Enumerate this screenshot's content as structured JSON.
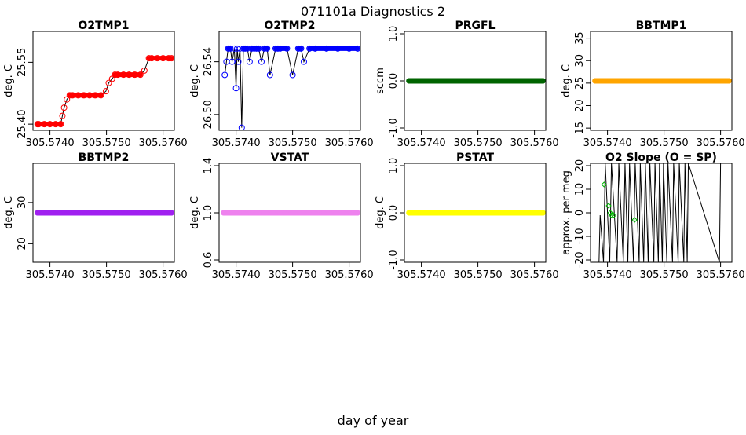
{
  "page": {
    "title": "071101a   Diagnostics 2",
    "xlabel": "day of year"
  },
  "chart_data": [
    {
      "type": "line",
      "title": "O2TMP1",
      "ylabel": "deg. C",
      "xlim": [
        305.5737,
        305.5762
      ],
      "ylim": [
        25.385,
        25.625
      ],
      "xticks": [
        305.574,
        305.575,
        305.576
      ],
      "xtick_labels": [
        "305.5740",
        "305.5750",
        "305.5760"
      ],
      "yticks": [
        25.4,
        25.55
      ],
      "ytick_labels": [
        "25.40",
        "25.55"
      ],
      "series": [
        {
          "color": "#ff0000",
          "marker": "circle",
          "line": true,
          "x": [
            305.57378,
            305.5738,
            305.5739,
            305.574,
            305.5741,
            305.57419,
            305.57422,
            305.57425,
            305.5743,
            305.57435,
            305.5744,
            305.5745,
            305.5746,
            305.5747,
            305.5748,
            305.5749,
            305.57499,
            305.57504,
            305.5751,
            305.57515,
            305.5752,
            305.5753,
            305.5754,
            305.5755,
            305.5756,
            305.57567,
            305.57575,
            305.5758,
            305.5759,
            305.576,
            305.5761,
            305.57615
          ],
          "y": [
            25.4,
            25.4,
            25.4,
            25.4,
            25.4,
            25.4,
            25.42,
            25.44,
            25.46,
            25.47,
            25.47,
            25.47,
            25.47,
            25.47,
            25.47,
            25.47,
            25.48,
            25.5,
            25.51,
            25.52,
            25.52,
            25.52,
            25.52,
            25.52,
            25.52,
            25.53,
            25.56,
            25.56,
            25.56,
            25.56,
            25.56,
            25.56
          ]
        }
      ]
    },
    {
      "type": "line",
      "title": "O2TMP2",
      "ylabel": "deg. C",
      "xlim": [
        305.5737,
        305.5762
      ],
      "ylim": [
        26.488,
        26.563
      ],
      "xticks": [
        305.574,
        305.575,
        305.576
      ],
      "xtick_labels": [
        "305.5740",
        "305.5750",
        "305.5760"
      ],
      "yticks": [
        26.5,
        26.54
      ],
      "ytick_labels": [
        "26.50",
        "26.54"
      ],
      "series": [
        {
          "color": "#0000ff",
          "marker": "circle",
          "line": true,
          "x": [
            305.5738,
            305.57383,
            305.57386,
            305.5739,
            305.57393,
            305.57397,
            305.574,
            305.57402,
            305.57404,
            305.57407,
            305.5741,
            305.57413,
            305.57416,
            305.5742,
            305.57424,
            305.57428,
            305.57432,
            305.57436,
            305.5744,
            305.57445,
            305.5745,
            305.57455,
            305.5746,
            305.5747,
            305.57474,
            305.57478,
            305.5749,
            305.575,
            305.5751,
            305.57515,
            305.5752,
            305.5753,
            305.5754,
            305.5756,
            305.5758,
            305.576,
            305.57615
          ],
          "y": [
            26.53,
            26.54,
            26.55,
            26.55,
            26.54,
            26.55,
            26.52,
            26.55,
            26.54,
            26.55,
            26.49,
            26.55,
            26.55,
            26.55,
            26.54,
            26.55,
            26.55,
            26.55,
            26.55,
            26.54,
            26.55,
            26.55,
            26.53,
            26.55,
            26.55,
            26.55,
            26.55,
            26.53,
            26.55,
            26.55,
            26.54,
            26.55,
            26.55,
            26.55,
            26.55,
            26.55,
            26.55
          ]
        }
      ]
    },
    {
      "type": "scatter",
      "title": "PRGFL",
      "ylabel": "sccm",
      "xlim": [
        305.5737,
        305.5762
      ],
      "ylim": [
        -1.05,
        1.05
      ],
      "xticks": [
        305.574,
        305.575,
        305.576
      ],
      "xtick_labels": [
        "305.5740",
        "305.5750",
        "305.5760"
      ],
      "yticks": [
        -1.0,
        0.0,
        1.0
      ],
      "ytick_labels": [
        "-1.0",
        "0.0",
        "1.0"
      ],
      "series": [
        {
          "color": "#006400",
          "marker": "circle",
          "line": false,
          "x_range": [
            305.57378,
            305.57615
          ],
          "y": 0.0
        }
      ]
    },
    {
      "type": "scatter",
      "title": "BBTMP1",
      "ylabel": "deg. C",
      "xlim": [
        305.5737,
        305.5762
      ],
      "ylim": [
        14.5,
        36.5
      ],
      "xticks": [
        305.574,
        305.575,
        305.576
      ],
      "xtick_labels": [
        "305.5740",
        "305.5750",
        "305.5760"
      ],
      "yticks": [
        15,
        20,
        25,
        30,
        35
      ],
      "ytick_labels": [
        "15",
        "20",
        "25",
        "30",
        "35"
      ],
      "series": [
        {
          "color": "#ffa500",
          "marker": "circle",
          "line": false,
          "x_range": [
            305.57378,
            305.57615
          ],
          "y": 25.5
        }
      ]
    },
    {
      "type": "scatter",
      "title": "BBTMP2",
      "ylabel": "deg. C",
      "xlim": [
        305.5737,
        305.5762
      ],
      "ylim": [
        15.5,
        39.5
      ],
      "xticks": [
        305.574,
        305.575,
        305.576
      ],
      "xtick_labels": [
        "305.5740",
        "305.5750",
        "305.5760"
      ],
      "yticks": [
        20,
        30
      ],
      "ytick_labels": [
        "20",
        "30"
      ],
      "series": [
        {
          "color": "#a020f0",
          "marker": "circle",
          "line": false,
          "x_range": [
            305.57378,
            305.57615
          ],
          "y": 27.5
        }
      ]
    },
    {
      "type": "scatter",
      "title": "VSTAT",
      "ylabel": "deg. C",
      "xlim": [
        305.5737,
        305.5762
      ],
      "ylim": [
        0.58,
        1.42
      ],
      "xticks": [
        305.574,
        305.575,
        305.576
      ],
      "xtick_labels": [
        "305.5740",
        "305.5750",
        "305.5760"
      ],
      "yticks": [
        0.6,
        1.0,
        1.4
      ],
      "ytick_labels": [
        "0.6",
        "1.0",
        "1.4"
      ],
      "series": [
        {
          "color": "#ee82ee",
          "marker": "circle",
          "line": false,
          "x_range": [
            305.57378,
            305.57615
          ],
          "y": 1.0
        }
      ]
    },
    {
      "type": "scatter",
      "title": "PSTAT",
      "ylabel": "deg. C",
      "xlim": [
        305.5737,
        305.5762
      ],
      "ylim": [
        -1.05,
        1.05
      ],
      "xticks": [
        305.574,
        305.575,
        305.576
      ],
      "xtick_labels": [
        "305.5740",
        "305.5750",
        "305.5760"
      ],
      "yticks": [
        -1.0,
        0.0,
        1.0
      ],
      "ytick_labels": [
        "-1.0",
        "0.0",
        "1.0"
      ],
      "series": [
        {
          "color": "#ffff00",
          "marker": "circle",
          "line": false,
          "x_range": [
            305.57378,
            305.57615
          ],
          "y": 0.0
        }
      ]
    },
    {
      "type": "line",
      "title": "O2 Slope (O = SP)",
      "ylabel": "approx. per meg",
      "xlim": [
        305.5737,
        305.5762
      ],
      "ylim": [
        -21,
        21
      ],
      "xticks": [
        305.574,
        305.575,
        305.576
      ],
      "xtick_labels": [
        "305.5740",
        "305.5750",
        "305.5760"
      ],
      "yticks": [
        -20,
        -10,
        0,
        10,
        20
      ],
      "ytick_labels": [
        "-20",
        "-10",
        "0",
        "10",
        "20"
      ],
      "series": [
        {
          "color": "#000000",
          "marker": "none",
          "line": true,
          "x": [
            305.57385,
            305.57387,
            305.57393,
            305.57396,
            305.57404,
            305.57407,
            305.57417,
            305.5742,
            305.57428,
            305.57431,
            305.57436,
            305.57439,
            305.57446,
            305.57449,
            305.57456,
            305.57458,
            305.57464,
            305.57467,
            305.57472,
            305.57475,
            305.57482,
            305.57484,
            305.5749,
            305.57492,
            305.57497,
            305.57499,
            305.57505,
            305.57507,
            305.57515,
            305.57517,
            305.57525,
            305.57527,
            305.57535,
            305.57537,
            305.57541,
            305.57543,
            305.57598,
            305.576
          ],
          "y": [
            -21,
            -1,
            -21,
            21,
            -21,
            21,
            -21,
            21,
            -21,
            21,
            -21,
            21,
            -21,
            21,
            -21,
            21,
            -21,
            21,
            -21,
            21,
            -21,
            21,
            -21,
            21,
            -21,
            21,
            -21,
            21,
            -21,
            21,
            -21,
            21,
            -21,
            21,
            -21,
            21,
            -21,
            21
          ]
        },
        {
          "color": "#00b400",
          "marker": "diamond",
          "line": false,
          "x": [
            305.57394,
            305.57402,
            305.57405,
            305.57407,
            305.57411,
            305.57448
          ],
          "y": [
            12,
            3,
            0,
            -1,
            -1,
            -3
          ]
        }
      ]
    }
  ]
}
